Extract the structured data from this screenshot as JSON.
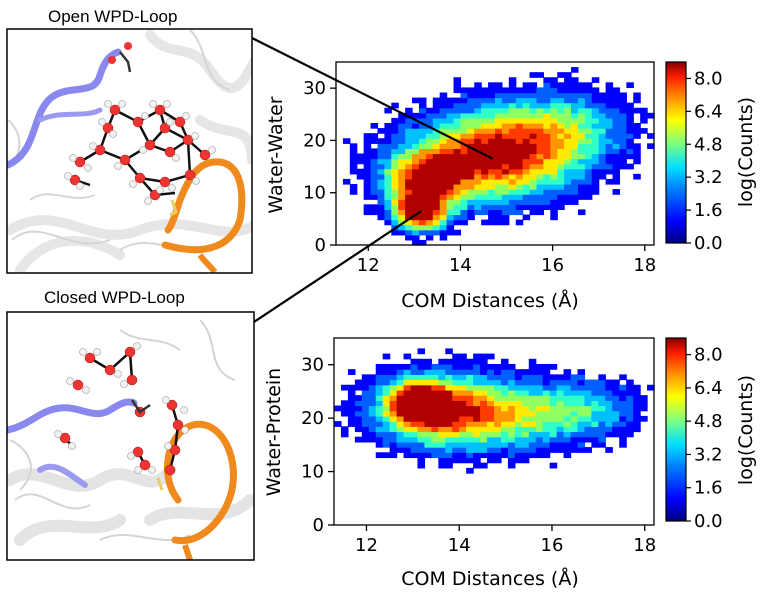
{
  "images": {
    "top": {
      "title": "Open WPD-Loop"
    },
    "bottom": {
      "title": "Closed WPD-Loop"
    }
  },
  "colors": {
    "colormap": [
      "#00007f",
      "#0000ff",
      "#0060ff",
      "#00c0ff",
      "#30ffc8",
      "#90ff60",
      "#ffea00",
      "#ff9500",
      "#ff3b00",
      "#b00000"
    ],
    "protein_loop_blue": "#8888ee",
    "wpd_loop_orange": "#f08a1c",
    "oxygen": "#ee3333",
    "hydrogen": "#f2f2f2",
    "sulfur": "#e8d060"
  },
  "chart_data": [
    {
      "type": "heatmap",
      "xlabel": "COM Distances (Å)",
      "ylabel": "Water-Water",
      "xticks": [
        "12",
        "14",
        "16",
        "18"
      ],
      "yticks": [
        "0",
        "10",
        "20",
        "30"
      ],
      "xlim": [
        11.3,
        18.2
      ],
      "ylim": [
        0,
        35
      ],
      "colorbar": {
        "label": "log(Counts)",
        "ticks": [
          "0.0",
          "1.6",
          "3.2",
          "4.8",
          "6.4",
          "8.0"
        ],
        "range": [
          0,
          8.8
        ]
      },
      "peaks": [
        {
          "x": 13.1,
          "y": 6,
          "value": 8.4
        },
        {
          "x": 13.2,
          "y": 11,
          "value": 6.6
        },
        {
          "x": 14.8,
          "y": 18,
          "value": 4.6
        }
      ],
      "annotations": [
        {
          "from": "Open WPD-Loop",
          "to_point": {
            "x": 14.7,
            "y": 16.5
          }
        },
        {
          "from": "Closed WPD-Loop",
          "to_point": {
            "x": 13.15,
            "y": 6.5
          }
        }
      ]
    },
    {
      "type": "heatmap",
      "xlabel": "COM Distances (Å)",
      "ylabel": "Water-Protein",
      "xticks": [
        "12",
        "14",
        "16",
        "18"
      ],
      "yticks": [
        "0",
        "10",
        "20",
        "30"
      ],
      "xlim": [
        11.3,
        18.2
      ],
      "ylim": [
        0,
        35
      ],
      "colorbar": {
        "label": "log(Counts)",
        "ticks": [
          "0.0",
          "1.6",
          "3.2",
          "4.8",
          "6.4",
          "8.0"
        ],
        "range": [
          0,
          8.8
        ]
      },
      "peaks": [
        {
          "x": 13.1,
          "y": 23,
          "value": 8.4
        },
        {
          "x": 14.7,
          "y": 21,
          "value": 5.2
        }
      ]
    }
  ]
}
